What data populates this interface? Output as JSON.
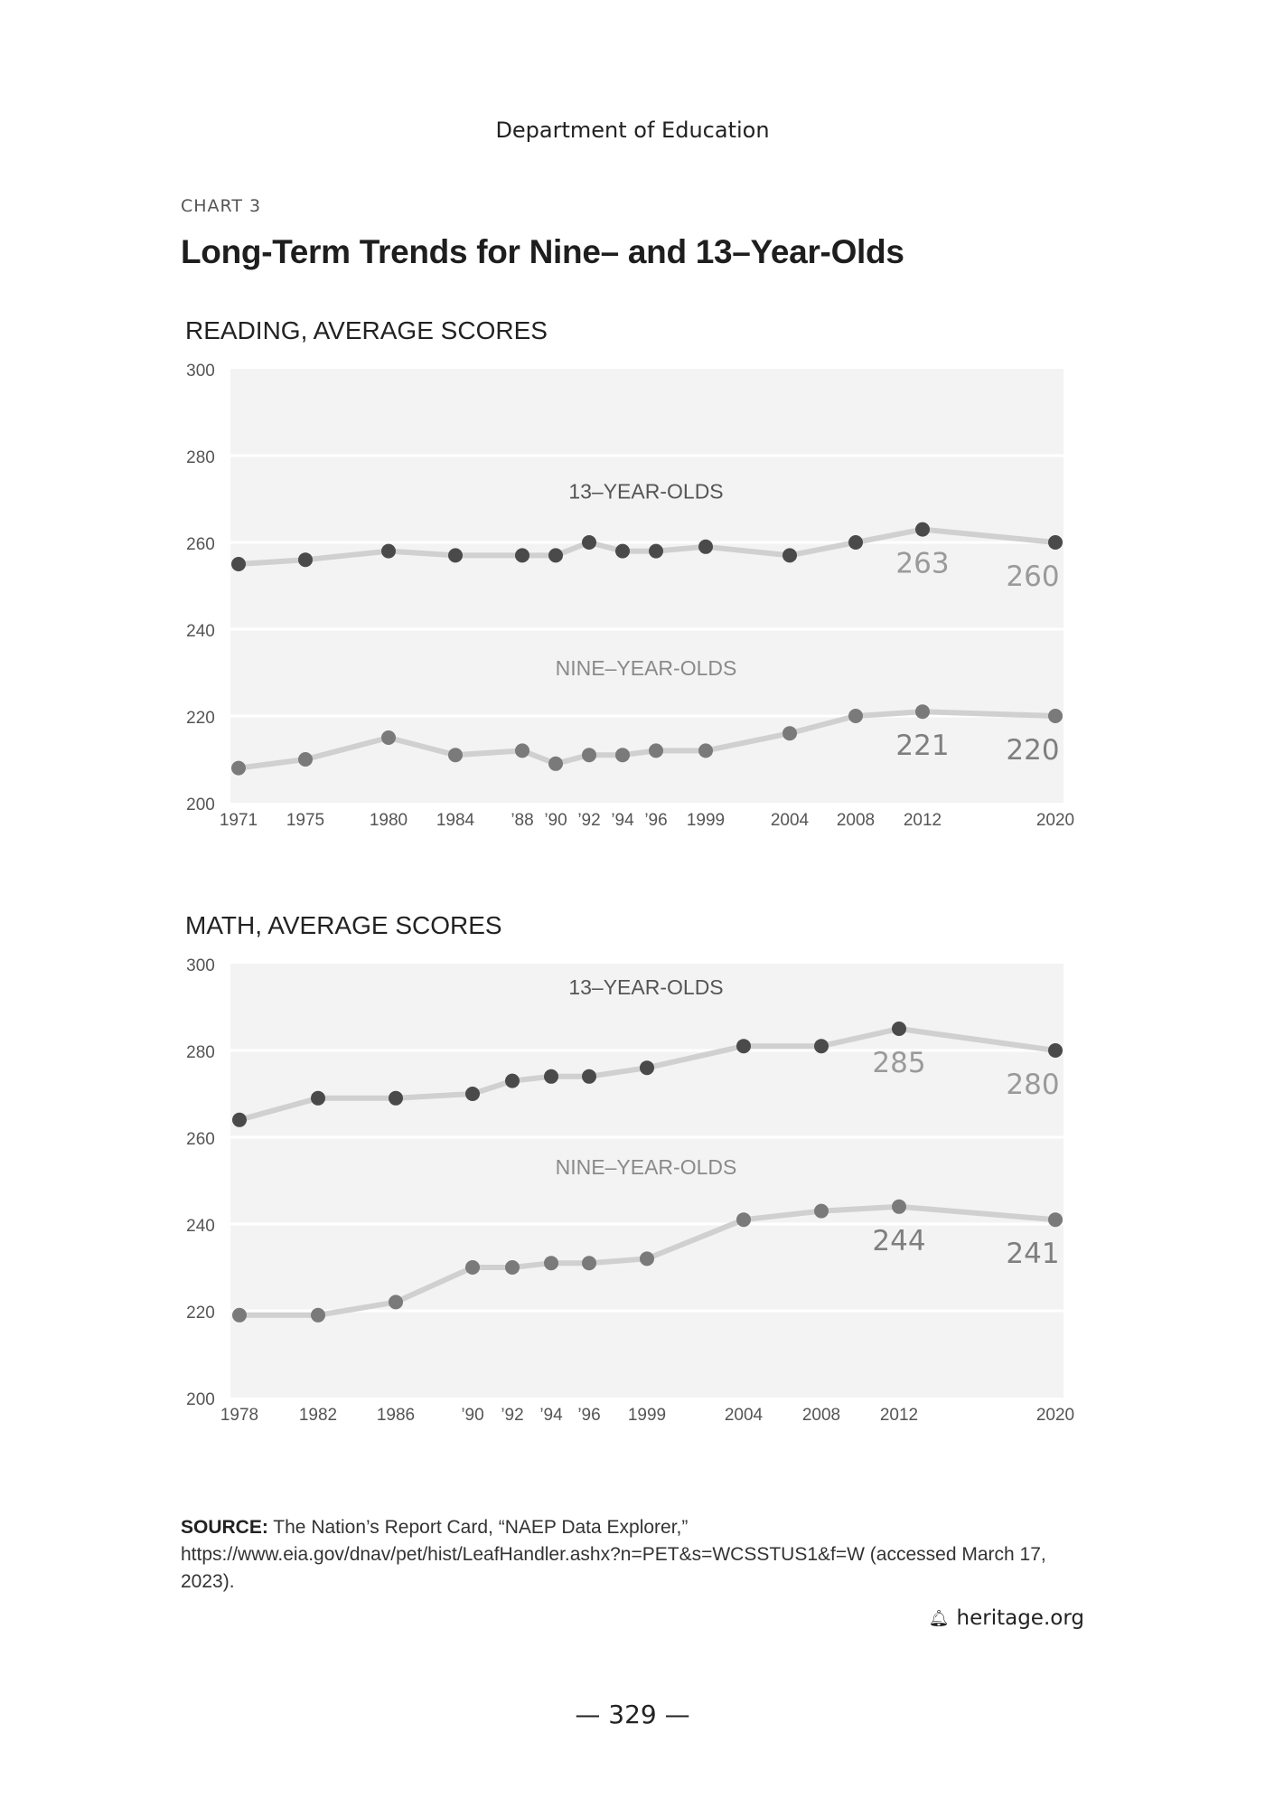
{
  "header": {
    "running_head": "Department of Education"
  },
  "chart_label": "CHART 3",
  "title": "Long-Term Trends for Nine– and 13–Year-Olds",
  "chart_data": [
    {
      "type": "line",
      "title": "READING, AVERAGE SCORES",
      "ylim": [
        200,
        300
      ],
      "yticks": [
        200,
        220,
        240,
        260,
        280,
        300
      ],
      "grid": true,
      "x": [
        1971,
        1975,
        1980,
        1984,
        1988,
        1990,
        1992,
        1994,
        1996,
        1999,
        2004,
        2008,
        2012,
        2020
      ],
      "xtick_labels": [
        "1971",
        "1975",
        "1980",
        "1984",
        "’88",
        "’90",
        "’92",
        "’94",
        "’96",
        "1999",
        "2004",
        "2008",
        "2012",
        "2020"
      ],
      "series": [
        {
          "name": "13–YEAR-OLDS",
          "values": [
            255,
            256,
            258,
            257,
            257,
            257,
            260,
            258,
            258,
            259,
            257,
            260,
            263,
            260
          ],
          "color": "#4a4a4a"
        },
        {
          "name": "NINE–YEAR-OLDS",
          "values": [
            208,
            210,
            215,
            211,
            212,
            209,
            211,
            211,
            212,
            212,
            216,
            220,
            221,
            220
          ],
          "color": "#7a7a7a"
        }
      ],
      "annotations": [
        {
          "series": 0,
          "x": 2012,
          "text": "263"
        },
        {
          "series": 0,
          "x": 2020,
          "text": "260"
        },
        {
          "series": 1,
          "x": 2012,
          "text": "221"
        },
        {
          "series": 1,
          "x": 2020,
          "text": "220"
        }
      ]
    },
    {
      "type": "line",
      "title": "MATH, AVERAGE SCORES",
      "ylim": [
        200,
        300
      ],
      "yticks": [
        200,
        220,
        240,
        260,
        280,
        300
      ],
      "grid": true,
      "x": [
        1978,
        1982,
        1986,
        1990,
        1992,
        1994,
        1996,
        1999,
        2004,
        2008,
        2012,
        2020
      ],
      "xtick_labels": [
        "1978",
        "1982",
        "1986",
        "’90",
        "’92",
        "’94",
        "’96",
        "1999",
        "2004",
        "2008",
        "2012",
        "2020"
      ],
      "series": [
        {
          "name": "13–YEAR-OLDS",
          "values": [
            264,
            269,
            269,
            270,
            273,
            274,
            274,
            276,
            281,
            281,
            285,
            280
          ],
          "color": "#4a4a4a"
        },
        {
          "name": "NINE–YEAR-OLDS",
          "values": [
            219,
            219,
            222,
            230,
            230,
            231,
            231,
            232,
            241,
            243,
            244,
            241
          ],
          "color": "#7a7a7a"
        }
      ],
      "annotations": [
        {
          "series": 0,
          "x": 2012,
          "text": "285"
        },
        {
          "series": 0,
          "x": 2020,
          "text": "280"
        },
        {
          "series": 1,
          "x": 2012,
          "text": "244"
        },
        {
          "series": 1,
          "x": 2020,
          "text": "241"
        }
      ]
    }
  ],
  "source": {
    "label": "SOURCE:",
    "text": " The Nation’s Report Card, “NAEP Data Explorer,” https://www.eia.gov/dnav/pet/hist/LeafHandler.ashx?n=PET&s=WCSSTUS1&f=W (accessed March 17, 2023)."
  },
  "brand": {
    "icon": "liberty-bell-icon",
    "text": "heritage.org"
  },
  "page_number": "— 329 —",
  "colors": {
    "plot_bg": "#f3f3f3",
    "gridline": "#ffffff",
    "connector": "#d0d0d0",
    "annotation": "#9a9a9a"
  }
}
